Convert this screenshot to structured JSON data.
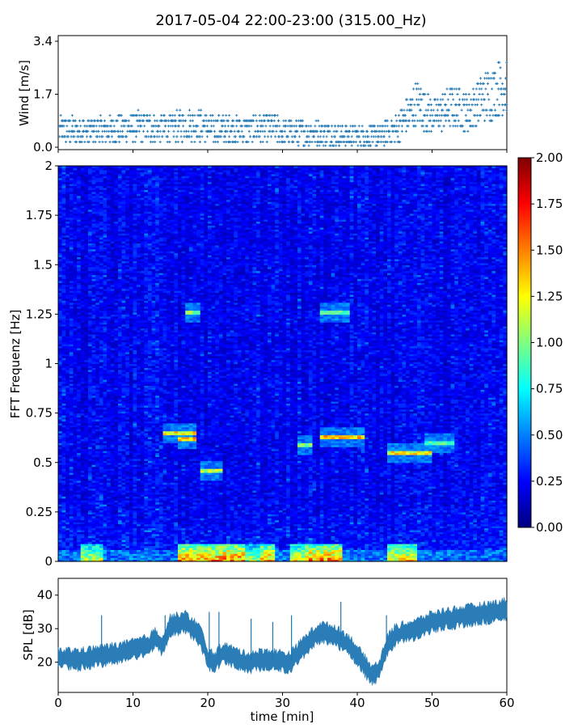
{
  "title": "2017-05-04 22:00-23:00 (315.00_Hz)",
  "chart_data": [
    {
      "type": "scatter",
      "ylabel": "Wind [m/s]",
      "xlim": [
        0,
        60
      ],
      "ylim": [
        0,
        3.4
      ],
      "yticks": [
        "0.0",
        "1.7",
        "3.4"
      ],
      "marker": "+",
      "color": "#1f77b4",
      "trend": {
        "x": [
          0,
          5,
          10,
          15,
          18,
          20,
          25,
          29,
          30,
          35,
          40,
          43,
          45,
          48,
          50,
          53,
          55,
          57,
          60
        ],
        "y": [
          0.55,
          0.5,
          0.65,
          0.6,
          0.75,
          0.6,
          0.55,
          0.65,
          0.45,
          0.45,
          0.35,
          0.35,
          0.55,
          1.4,
          1.0,
          1.3,
          1.15,
          1.6,
          2.0
        ]
      }
    },
    {
      "type": "heatmap",
      "ylabel": "FFT Frequenz [Hz]",
      "xlim": [
        0,
        60
      ],
      "ylim": [
        0,
        2
      ],
      "yticks": [
        "0",
        "0.25",
        "0.5",
        "0.75",
        "1",
        "1.25",
        "1.5",
        "1.75",
        "2"
      ],
      "colormap": "jet",
      "colorbar": {
        "range": [
          0,
          2
        ],
        "ticks": [
          "0.00",
          "0.25",
          "0.50",
          "0.75",
          "1.00",
          "1.25",
          "1.50",
          "1.75",
          "2.00"
        ]
      },
      "features": {
        "lines": [
          {
            "x": [
              14,
              18.5
            ],
            "freq": 0.65,
            "level": 1.4
          },
          {
            "x": [
              16,
              18.5
            ],
            "freq": 0.62,
            "level": 1.6
          },
          {
            "x": [
              17,
              19
            ],
            "freq": 1.26,
            "level": 1.1
          },
          {
            "x": [
              19,
              22
            ],
            "freq": 0.46,
            "level": 1.2
          },
          {
            "x": [
              32,
              34
            ],
            "freq": 0.59,
            "level": 1.1
          },
          {
            "x": [
              35,
              41
            ],
            "freq": 0.63,
            "level": 1.5
          },
          {
            "x": [
              35,
              39
            ],
            "freq": 1.26,
            "level": 1.0
          },
          {
            "x": [
              44,
              50
            ],
            "freq": 0.55,
            "level": 1.4
          },
          {
            "x": [
              49,
              53
            ],
            "freq": 0.6,
            "level": 1.0
          }
        ],
        "low_band": [
          {
            "x": [
              3,
              6
            ],
            "level": 1.3
          },
          {
            "x": [
              16,
              25
            ],
            "level": 1.7
          },
          {
            "x": [
              25,
              27
            ],
            "level": 1.2
          },
          {
            "x": [
              27,
              29
            ],
            "level": 1.6
          },
          {
            "x": [
              31,
              33
            ],
            "level": 1.4
          },
          {
            "x": [
              33,
              38
            ],
            "level": 1.7
          },
          {
            "x": [
              44,
              48
            ],
            "level": 1.5
          }
        ]
      }
    },
    {
      "type": "area",
      "ylabel": "SPL [dB]",
      "xlabel": "time [min]",
      "xlim": [
        0,
        60
      ],
      "ylim": [
        11,
        45
      ],
      "yticks": [
        "20",
        "30",
        "40"
      ],
      "xticks": [
        "0",
        "10",
        "20",
        "30",
        "40",
        "50",
        "60"
      ],
      "color": "#1f77b4",
      "x": [
        0,
        3,
        6,
        9,
        12,
        13,
        14,
        15,
        17,
        19,
        20,
        21,
        22,
        25,
        28,
        31,
        33,
        35,
        37,
        39,
        41,
        42,
        43,
        44,
        45,
        48,
        50,
        52,
        55,
        58,
        60
      ],
      "y": [
        21,
        21,
        22,
        23,
        25,
        27,
        25,
        31,
        32,
        28,
        21,
        20,
        23,
        20,
        21,
        20,
        25,
        29,
        28,
        25,
        19,
        16,
        18,
        25,
        28,
        30,
        32,
        33,
        34,
        35,
        36
      ]
    }
  ]
}
